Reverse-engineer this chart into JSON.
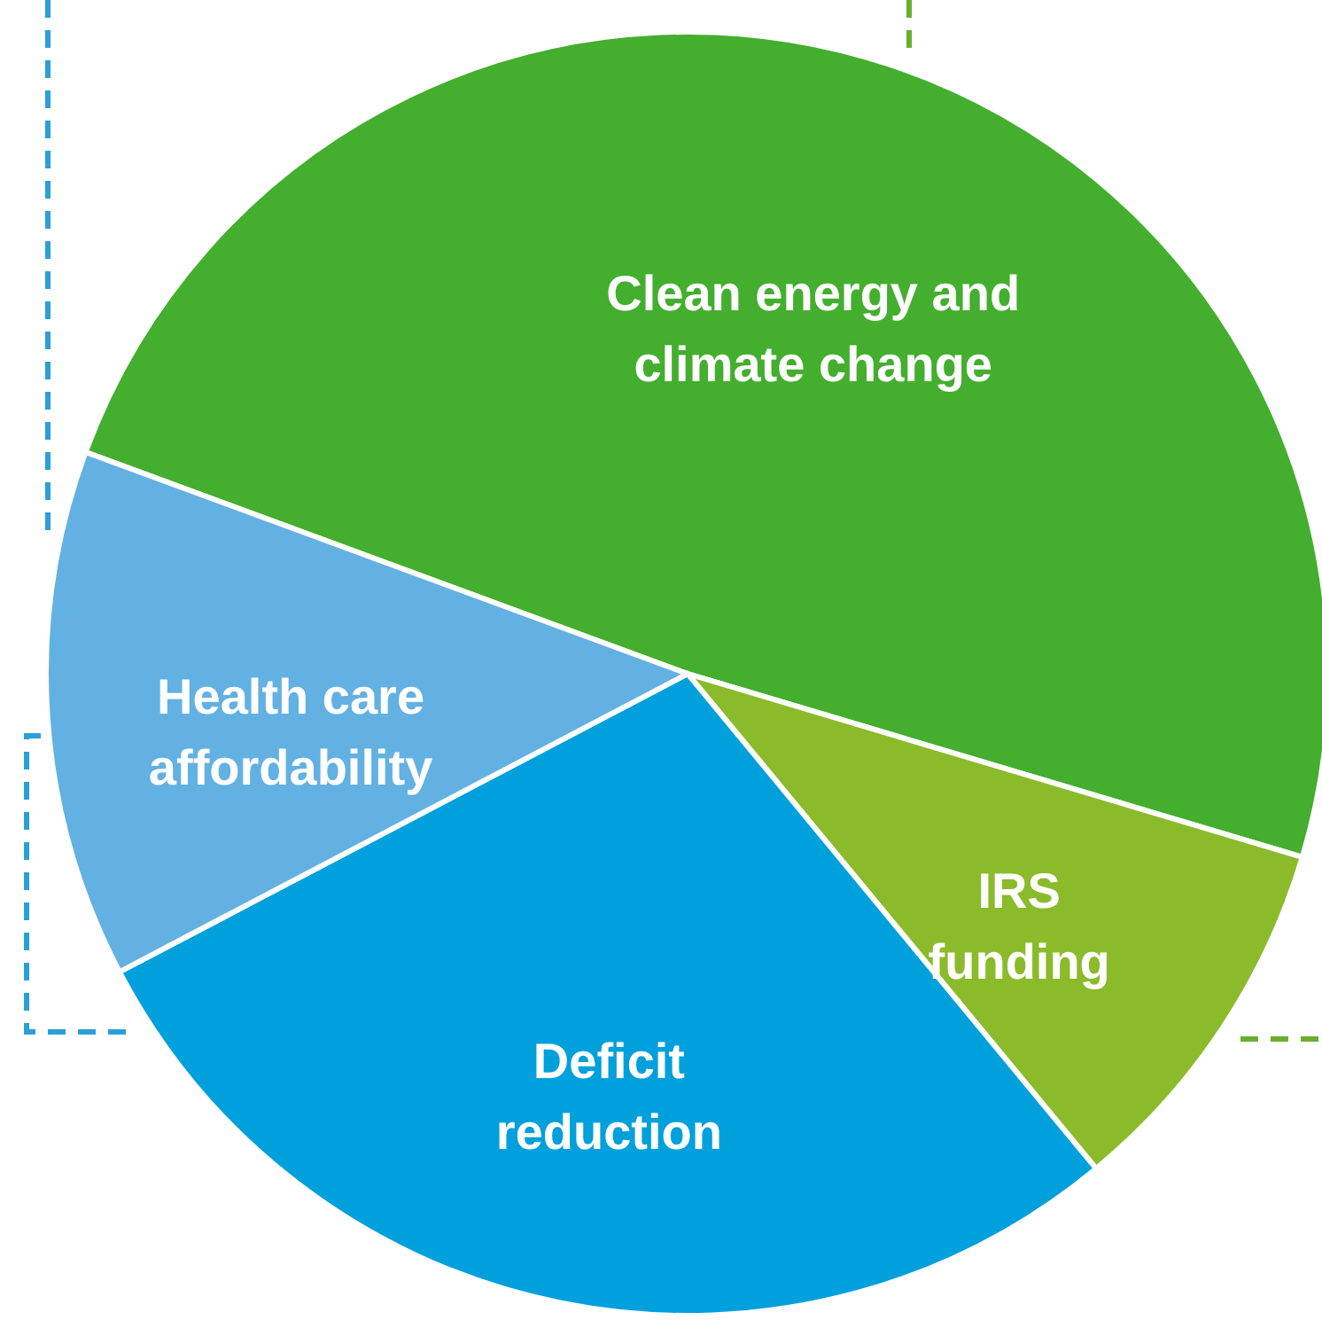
{
  "chart_data": {
    "type": "pie",
    "categories": [
      "Clean energy and climate change",
      "IRS funding",
      "Deficit reduction",
      "Health care affordability"
    ],
    "values": [
      49.0,
      9.4,
      28.3,
      13.3
    ],
    "colors": [
      "#44ae2e",
      "#8bbb2a",
      "#00a0dc",
      "#62b1e2"
    ]
  }
}
